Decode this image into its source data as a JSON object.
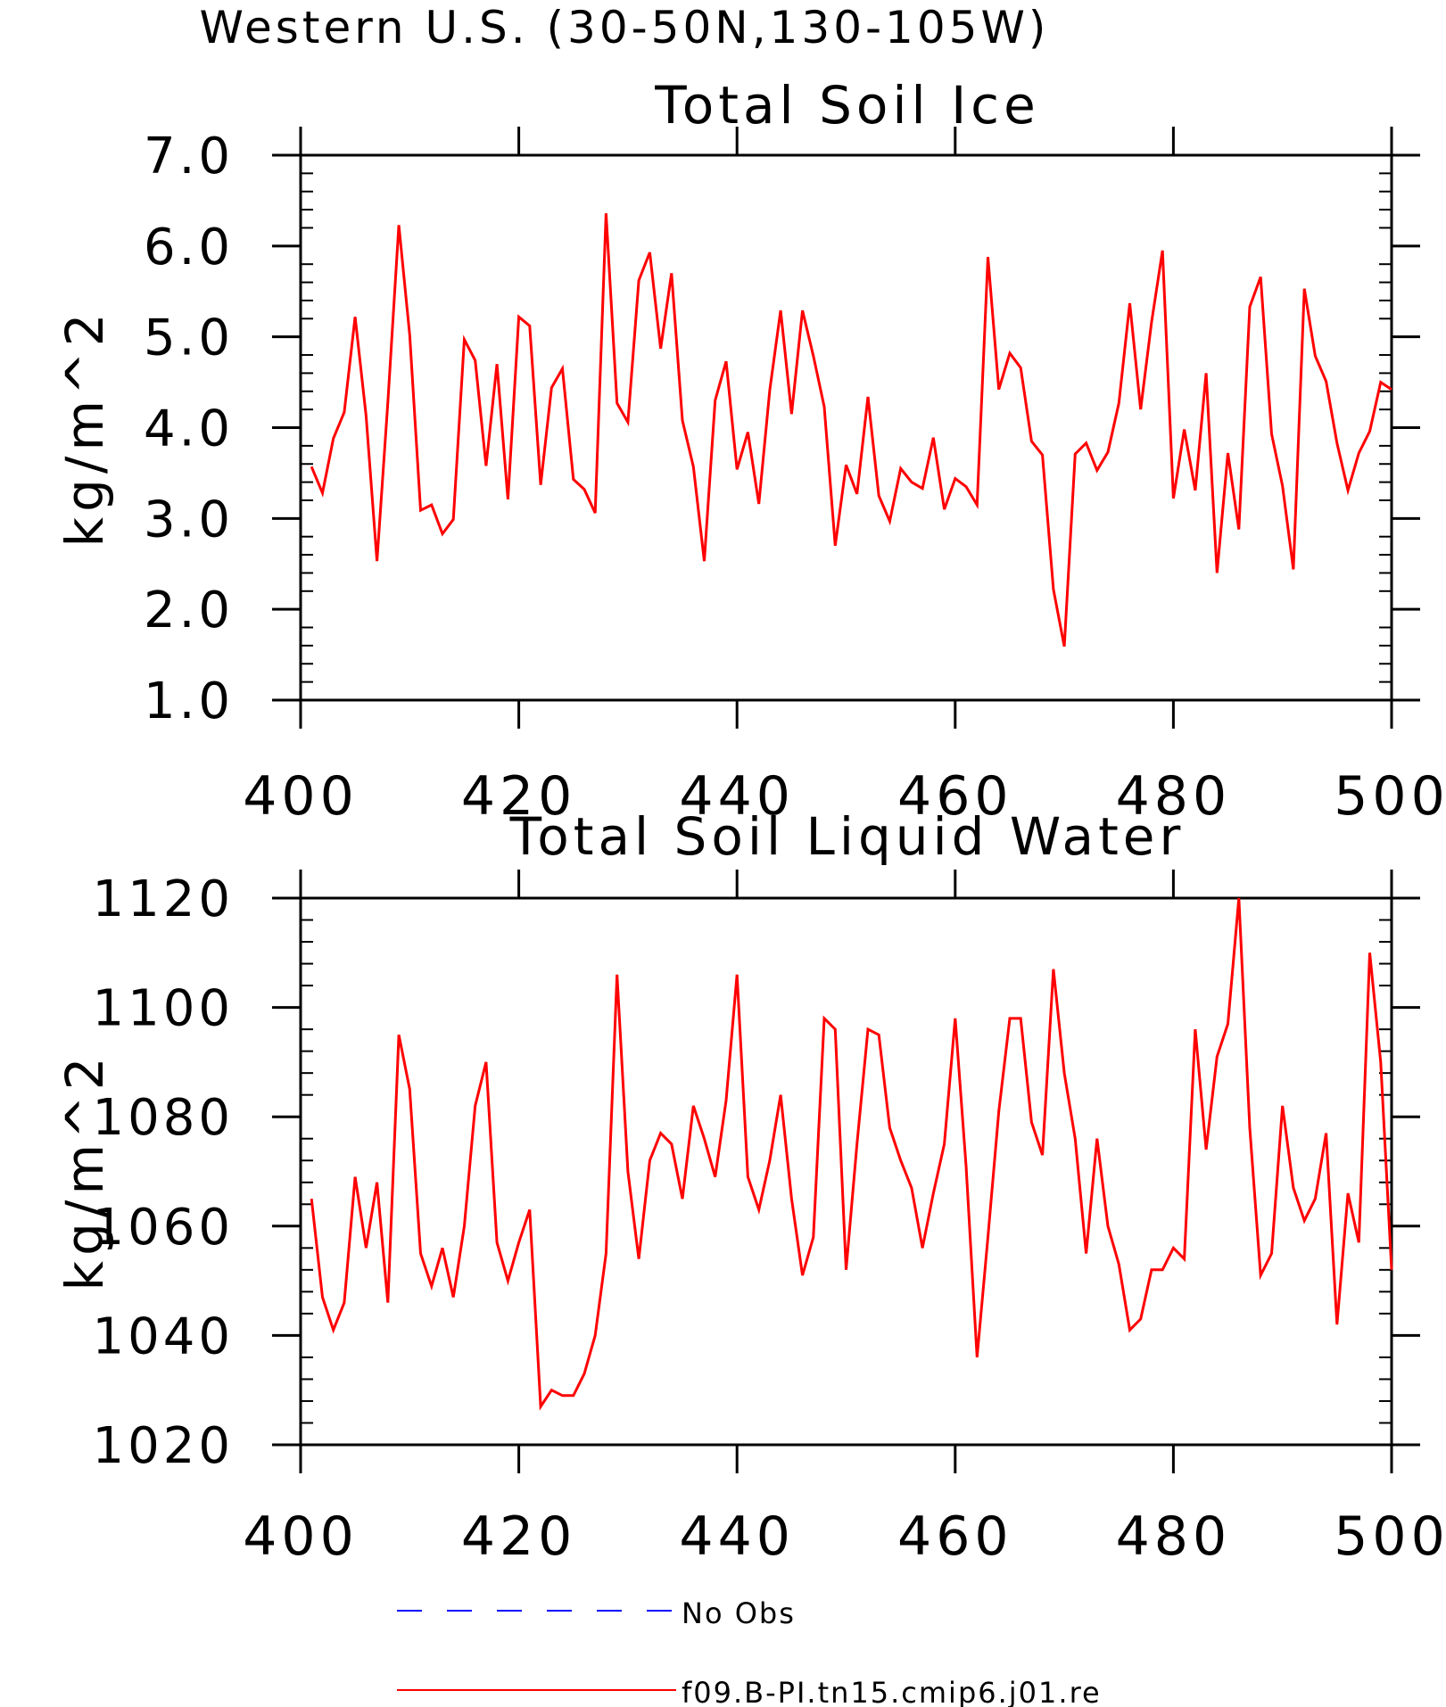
{
  "figure": {
    "title": "Western U.S. (30-50N,130-105W)"
  },
  "legend": {
    "placement": "bottom",
    "entries": [
      {
        "label": "No Obs",
        "color": "#0000ff",
        "style": "dashed"
      },
      {
        "label": "f09.B-PI.tn15.cmip6.j01.re",
        "color": "#ff0000",
        "style": "solid"
      }
    ]
  },
  "colors": {
    "series": "#ff0000",
    "obs": "#0000ff",
    "axes": "#000000"
  },
  "chart_data": [
    {
      "type": "line",
      "title": "Total Soil Ice",
      "ylabel": "kg/m^2",
      "xlabel": "",
      "xlim": [
        400,
        500
      ],
      "ylim": [
        1.0,
        7.0
      ],
      "x_ticks": [
        "400",
        "420",
        "440",
        "460",
        "480",
        "500"
      ],
      "y_ticks": [
        "1.0",
        "2.0",
        "3.0",
        "4.0",
        "5.0",
        "6.0",
        "7.0"
      ],
      "x_start": 401,
      "x_step": 1,
      "series": [
        {
          "name": "f09.B-PI.tn15.cmip6.j01.re",
          "color": "#ff0000",
          "values": [
            3.57,
            3.28,
            3.88,
            4.17,
            5.22,
            4.13,
            2.53,
            4.28,
            6.23,
            5.02,
            3.09,
            3.15,
            2.83,
            2.99,
            4.97,
            4.74,
            3.58,
            4.7,
            3.21,
            5.22,
            5.12,
            3.37,
            4.44,
            4.65,
            3.43,
            3.32,
            3.06,
            6.36,
            4.27,
            4.06,
            5.62,
            5.93,
            4.87,
            5.7,
            4.08,
            3.57,
            2.53,
            4.3,
            4.73,
            3.54,
            3.95,
            3.16,
            4.41,
            5.29,
            4.15,
            5.29,
            4.79,
            4.23,
            2.7,
            3.59,
            3.27,
            4.34,
            3.25,
            2.97,
            3.55,
            3.4,
            3.33,
            3.89,
            3.1,
            3.44,
            3.35,
            3.15,
            5.88,
            4.42,
            4.82,
            4.66,
            3.85,
            3.7,
            2.22,
            1.59,
            3.71,
            3.83,
            3.53,
            3.73,
            4.27,
            5.37,
            4.2,
            5.16,
            5.95,
            3.22,
            3.98,
            3.31,
            4.6,
            2.4,
            3.72,
            2.88,
            5.33,
            5.66,
            3.93,
            3.36,
            2.44,
            5.53,
            4.79,
            4.51,
            3.83,
            3.31,
            3.72,
            3.96,
            4.5,
            4.42
          ]
        }
      ]
    },
    {
      "type": "line",
      "title": "Total Soil Liquid Water",
      "ylabel": "kg/m^2",
      "xlabel": "",
      "xlim": [
        400,
        500
      ],
      "ylim": [
        1020,
        1120
      ],
      "x_ticks": [
        "400",
        "420",
        "440",
        "460",
        "480",
        "500"
      ],
      "y_ticks": [
        "1020",
        "1040",
        "1060",
        "1080",
        "1100",
        "1120"
      ],
      "x_start": 401,
      "x_step": 1,
      "series": [
        {
          "name": "f09.B-PI.tn15.cmip6.j01.re",
          "color": "#ff0000",
          "values": [
            1065,
            1047,
            1041,
            1046,
            1069,
            1056,
            1068,
            1046,
            1095,
            1085,
            1055,
            1049,
            1056,
            1047,
            1060,
            1082,
            1090,
            1057,
            1050,
            1057,
            1063,
            1027,
            1030,
            1029,
            1029,
            1033,
            1040,
            1055,
            1106,
            1070,
            1054,
            1072,
            1077,
            1075,
            1065,
            1082,
            1076,
            1069,
            1083,
            1106,
            1069,
            1063,
            1072,
            1084,
            1065,
            1051,
            1058,
            1098,
            1096,
            1052,
            1075,
            1096,
            1095,
            1078,
            1072,
            1067,
            1056,
            1066,
            1075,
            1098,
            1071,
            1036,
            1058,
            1081,
            1098,
            1098,
            1079,
            1073,
            1107,
            1088,
            1076,
            1055,
            1076,
            1060,
            1053,
            1041,
            1043,
            1052,
            1052,
            1056,
            1054,
            1096,
            1074,
            1091,
            1097,
            1120,
            1078,
            1051,
            1055,
            1082,
            1067,
            1061,
            1065,
            1077,
            1042,
            1066,
            1057,
            1110,
            1090,
            1052
          ]
        }
      ]
    }
  ]
}
